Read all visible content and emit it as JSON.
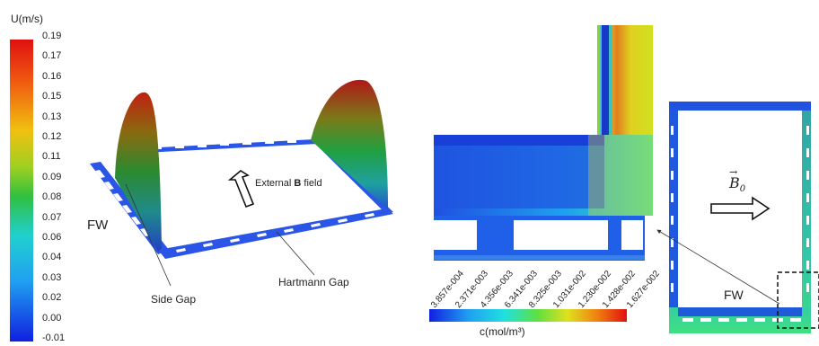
{
  "left_colorbar": {
    "title": "U(m/s)",
    "ticks": [
      "0.19",
      "0.17",
      "0.16",
      "0.15",
      "0.13",
      "0.12",
      "0.11",
      "0.09",
      "0.08",
      "0.07",
      "0.06",
      "0.04",
      "0.03",
      "0.02",
      "0.00",
      "-0.01"
    ]
  },
  "left_panel": {
    "fw_label": "FW",
    "field_label_prefix": "External ",
    "field_label_bold": "B",
    "field_label_suffix": " field",
    "side_gap_label": "Side Gap",
    "hartmann_gap_label": "Hartmann Gap"
  },
  "middle_colorbar": {
    "labels": [
      "3.857e-004",
      "2.371e-003",
      "4.356e-003",
      "6.341e-003",
      "8.325e-003",
      "1.031e-002",
      "1.230e-002",
      "1.428e-002",
      "1.627e-002"
    ],
    "title": "c(mol/m³)"
  },
  "right_panel": {
    "field_symbol": "B",
    "field_subscript": "0",
    "fw_label": "FW"
  },
  "colors": {
    "duct_blue": "#2f50e6",
    "concentration_low": "#1030d0",
    "concentration_high": "#e02010"
  }
}
